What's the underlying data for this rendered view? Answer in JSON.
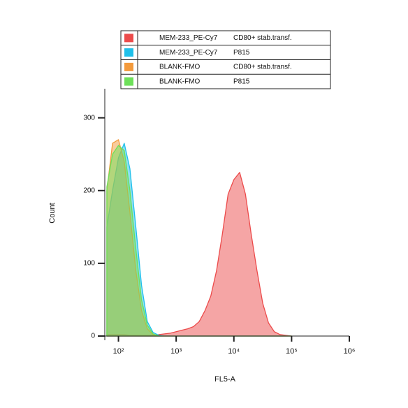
{
  "chart_data": {
    "type": "histogram-overlay",
    "x_label": "FL5-A",
    "y_label": "Count",
    "xscale": "log",
    "xlim": [
      58,
      1000000
    ],
    "xticks": [
      {
        "value": 100,
        "label": "10²"
      },
      {
        "value": 1000,
        "label": "10³"
      },
      {
        "value": 10000,
        "label": "10⁴"
      },
      {
        "value": 100000,
        "label": "10⁵"
      },
      {
        "value": 1000000,
        "label": "10⁶"
      }
    ],
    "ylim": [
      0,
      340
    ],
    "yticks": [
      0,
      100,
      200,
      300
    ],
    "x": [
      63,
      79,
      100,
      126,
      158,
      200,
      251,
      316,
      398,
      501,
      631,
      794,
      1000,
      1259,
      1585,
      1995,
      2512,
      3162,
      3981,
      5012,
      6310,
      7943,
      10000,
      12589,
      15849,
      19953,
      25119,
      31623,
      39811,
      50119,
      63096,
      79433,
      100000
    ],
    "series": [
      {
        "name": "MEM-233_PE-Cy7",
        "sample": "CD80+ stab.transf.",
        "color": "#ec4b4b",
        "values": [
          2,
          2,
          2,
          2,
          1,
          1,
          1,
          1,
          1,
          2,
          3,
          4,
          6,
          8,
          10,
          13,
          20,
          35,
          55,
          90,
          140,
          195,
          215,
          225,
          195,
          140,
          90,
          45,
          18,
          6,
          2,
          1,
          0
        ]
      },
      {
        "name": "MEM-233_PE-Cy7",
        "sample": "P815",
        "color": "#1fc0ea",
        "values": [
          150,
          200,
          245,
          265,
          230,
          150,
          70,
          20,
          5,
          1,
          0,
          0,
          0,
          0,
          0,
          0,
          0,
          0,
          0,
          0,
          0,
          0,
          0,
          0,
          0,
          0,
          0,
          0,
          0,
          0,
          0,
          0,
          0
        ]
      },
      {
        "name": "BLANK-FMO",
        "sample": "CD80+ stab.transf.",
        "color": "#f39a3c",
        "values": [
          200,
          265,
          270,
          240,
          170,
          90,
          35,
          10,
          2,
          0,
          0,
          0,
          0,
          0,
          0,
          0,
          0,
          0,
          0,
          0,
          0,
          0,
          0,
          0,
          0,
          0,
          0,
          0,
          0,
          0,
          0,
          0,
          0
        ]
      },
      {
        "name": "BLANK-FMO",
        "sample": "P815",
        "color": "#6ee05a",
        "values": [
          205,
          250,
          262,
          255,
          200,
          120,
          50,
          15,
          3,
          0,
          0,
          0,
          0,
          0,
          0,
          0,
          0,
          0,
          0,
          0,
          0,
          0,
          0,
          0,
          0,
          0,
          0,
          0,
          0,
          0,
          0,
          0,
          0
        ]
      }
    ]
  }
}
